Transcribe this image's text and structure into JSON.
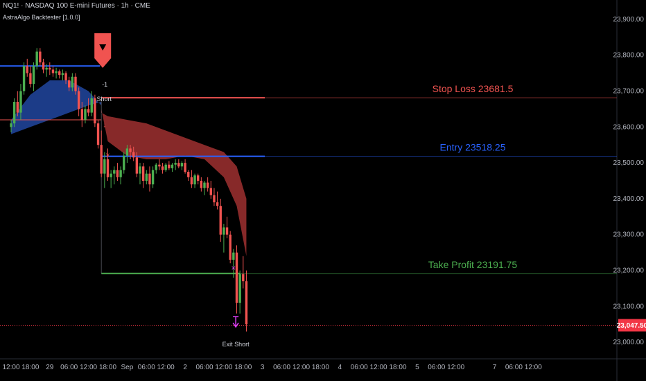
{
  "header": {
    "symbol_line": "NQ1! · NASDAQ 100 E-mini Futures · 1h · CME",
    "indicator": "AstraAlgo Backtester [1.0.0]"
  },
  "colors": {
    "background": "#000000",
    "bull": "#4caf50",
    "bear": "#f05350",
    "stop": "#f05350",
    "entry": "#2962ff",
    "take_profit": "#4caf50",
    "cloud_blue": "#1e3f8f",
    "cloud_red": "#8e2b2b",
    "exit": "#e040fb",
    "price_badge": "#f23645"
  },
  "chart_data": {
    "type": "candlestick",
    "ylim": [
      22950,
      23950
    ],
    "y_ticks": [
      23000,
      23100,
      23200,
      23300,
      23400,
      23500,
      23600,
      23700,
      23800,
      23900
    ],
    "y_tick_labels": [
      "23,000.00",
      "23,100.00",
      "23,200.00",
      "23,300.00",
      "23,400.00",
      "23,500.00",
      "23,600.00",
      "23,700.00",
      "23,800.00",
      "23,900.00"
    ],
    "x_ticks": [
      {
        "label": "12:00",
        "bar": 0
      },
      {
        "label": "18:00",
        "bar": 6
      },
      {
        "label": "29",
        "bar": 12
      },
      {
        "label": "06:00",
        "bar": 18
      },
      {
        "label": "12:00",
        "bar": 24
      },
      {
        "label": "18:00",
        "bar": 30
      },
      {
        "label": "Sep",
        "bar": 36
      },
      {
        "label": "06:00",
        "bar": 42
      },
      {
        "label": "12:00",
        "bar": 48
      },
      {
        "label": "2",
        "bar": 54
      },
      {
        "label": "06:00",
        "bar": 60
      },
      {
        "label": "12:00",
        "bar": 66
      },
      {
        "label": "18:00",
        "bar": 72
      },
      {
        "label": "3",
        "bar": 78
      },
      {
        "label": "06:00",
        "bar": 84
      },
      {
        "label": "12:00",
        "bar": 90
      },
      {
        "label": "18:00",
        "bar": 96
      },
      {
        "label": "4",
        "bar": 102
      },
      {
        "label": "06:00",
        "bar": 108
      },
      {
        "label": "12:00",
        "bar": 114
      },
      {
        "label": "18:00",
        "bar": 120
      },
      {
        "label": "5",
        "bar": 126
      },
      {
        "label": "06:00",
        "bar": 132
      },
      {
        "label": "12:00",
        "bar": 138
      },
      {
        "label": "7",
        "bar": 150
      },
      {
        "label": "06:00",
        "bar": 156
      },
      {
        "label": "12:00",
        "bar": 162
      }
    ],
    "ohlc": [
      [
        23600,
        23620,
        23585,
        23610
      ],
      [
        23610,
        23680,
        23600,
        23670
      ],
      [
        23670,
        23700,
        23630,
        23640
      ],
      [
        23640,
        23720,
        23620,
        23700
      ],
      [
        23700,
        23780,
        23690,
        23770
      ],
      [
        23770,
        23790,
        23740,
        23750
      ],
      [
        23750,
        23770,
        23710,
        23720
      ],
      [
        23720,
        23780,
        23700,
        23770
      ],
      [
        23770,
        23820,
        23760,
        23810
      ],
      [
        23810,
        23820,
        23770,
        23780
      ],
      [
        23780,
        23790,
        23750,
        23760
      ],
      [
        23760,
        23775,
        23740,
        23765
      ],
      [
        23765,
        23780,
        23745,
        23760
      ],
      [
        23760,
        23770,
        23740,
        23750
      ],
      [
        23750,
        23765,
        23735,
        23755
      ],
      [
        23755,
        23760,
        23735,
        23745
      ],
      [
        23745,
        23760,
        23730,
        23750
      ],
      [
        23750,
        23755,
        23720,
        23730
      ],
      [
        23730,
        23740,
        23700,
        23710
      ],
      [
        23710,
        23750,
        23700,
        23740
      ],
      [
        23740,
        23750,
        23690,
        23700
      ],
      [
        23700,
        23710,
        23630,
        23650
      ],
      [
        23650,
        23670,
        23600,
        23620
      ],
      [
        23620,
        23660,
        23610,
        23650
      ],
      [
        23650,
        23680,
        23630,
        23640
      ],
      [
        23640,
        23700,
        23630,
        23680
      ],
      [
        23680,
        23690,
        23600,
        23610
      ],
      [
        23610,
        23620,
        23540,
        23550
      ],
      [
        23550,
        23590,
        23460,
        23470
      ],
      [
        23470,
        23530,
        23430,
        23510
      ],
      [
        23510,
        23540,
        23450,
        23460
      ],
      [
        23460,
        23480,
        23430,
        23470
      ],
      [
        23470,
        23490,
        23440,
        23480
      ],
      [
        23480,
        23500,
        23450,
        23460
      ],
      [
        23460,
        23490,
        23440,
        23480
      ],
      [
        23480,
        23530,
        23470,
        23520
      ],
      [
        23520,
        23550,
        23500,
        23540
      ],
      [
        23540,
        23550,
        23510,
        23530
      ],
      [
        23530,
        23545,
        23505,
        23515
      ],
      [
        23515,
        23530,
        23460,
        23470
      ],
      [
        23470,
        23500,
        23440,
        23490
      ],
      [
        23490,
        23500,
        23430,
        23450
      ],
      [
        23450,
        23480,
        23440,
        23470
      ],
      [
        23470,
        23490,
        23420,
        23440
      ],
      [
        23440,
        23490,
        23430,
        23480
      ],
      [
        23480,
        23500,
        23470,
        23495
      ],
      [
        23495,
        23510,
        23480,
        23490
      ],
      [
        23490,
        23500,
        23470,
        23480
      ],
      [
        23480,
        23500,
        23475,
        23495
      ],
      [
        23495,
        23505,
        23480,
        23485
      ],
      [
        23485,
        23500,
        23475,
        23495
      ],
      [
        23495,
        23510,
        23480,
        23500
      ],
      [
        23500,
        23510,
        23485,
        23490
      ],
      [
        23490,
        23505,
        23480,
        23500
      ],
      [
        23500,
        23510,
        23470,
        23475
      ],
      [
        23475,
        23480,
        23450,
        23460
      ],
      [
        23460,
        23480,
        23430,
        23440
      ],
      [
        23440,
        23470,
        23430,
        23465
      ],
      [
        23465,
        23470,
        23440,
        23450
      ],
      [
        23450,
        23460,
        23420,
        23430
      ],
      [
        23430,
        23450,
        23410,
        23445
      ],
      [
        23445,
        23460,
        23420,
        23430
      ],
      [
        23430,
        23450,
        23400,
        23410
      ],
      [
        23410,
        23430,
        23380,
        23390
      ],
      [
        23390,
        23420,
        23370,
        23380
      ],
      [
        23380,
        23400,
        23280,
        23300
      ],
      [
        23300,
        23330,
        23250,
        23320
      ],
      [
        23320,
        23350,
        23290,
        23300
      ],
      [
        23300,
        23310,
        23220,
        23230
      ],
      [
        23230,
        23260,
        23180,
        23250
      ],
      [
        23250,
        23270,
        23080,
        23110
      ],
      [
        23110,
        23200,
        23080,
        23190
      ],
      [
        23190,
        23240,
        23150,
        23170
      ],
      [
        23170,
        23200,
        23030,
        23050
      ]
    ],
    "cloud_blue": [
      [
        0,
        23580,
        23620
      ],
      [
        6,
        23600,
        23690
      ],
      [
        12,
        23620,
        23730
      ],
      [
        18,
        23640,
        23730
      ],
      [
        24,
        23660,
        23700
      ],
      [
        28,
        23670,
        23660
      ]
    ],
    "cloud_red": [
      [
        28,
        23650,
        23640
      ],
      [
        30,
        23560,
        23630
      ],
      [
        36,
        23520,
        23620
      ],
      [
        42,
        23510,
        23610
      ],
      [
        48,
        23510,
        23590
      ],
      [
        54,
        23520,
        23570
      ],
      [
        60,
        23510,
        23550
      ],
      [
        66,
        23460,
        23530
      ],
      [
        70,
        23380,
        23490
      ],
      [
        73,
        23240,
        23400
      ]
    ],
    "levels": [
      {
        "name": "Stop Loss",
        "value": 23681.5,
        "label": "Stop Loss 23681.5"
      },
      {
        "name": "Entry",
        "value": 23518.25,
        "label": "Entry 23518.25"
      },
      {
        "name": "Take Profit",
        "value": 23191.75,
        "label": "Take Profit 23191.75"
      }
    ],
    "trade": {
      "entry_bar": 28,
      "exit_bar": 71,
      "entry_label": "Short",
      "size_label": "-1",
      "exit_label": "Exit Short"
    },
    "blue_prev_line": 23770,
    "current_price": 23047.5,
    "current_price_label": "23,047.50"
  }
}
